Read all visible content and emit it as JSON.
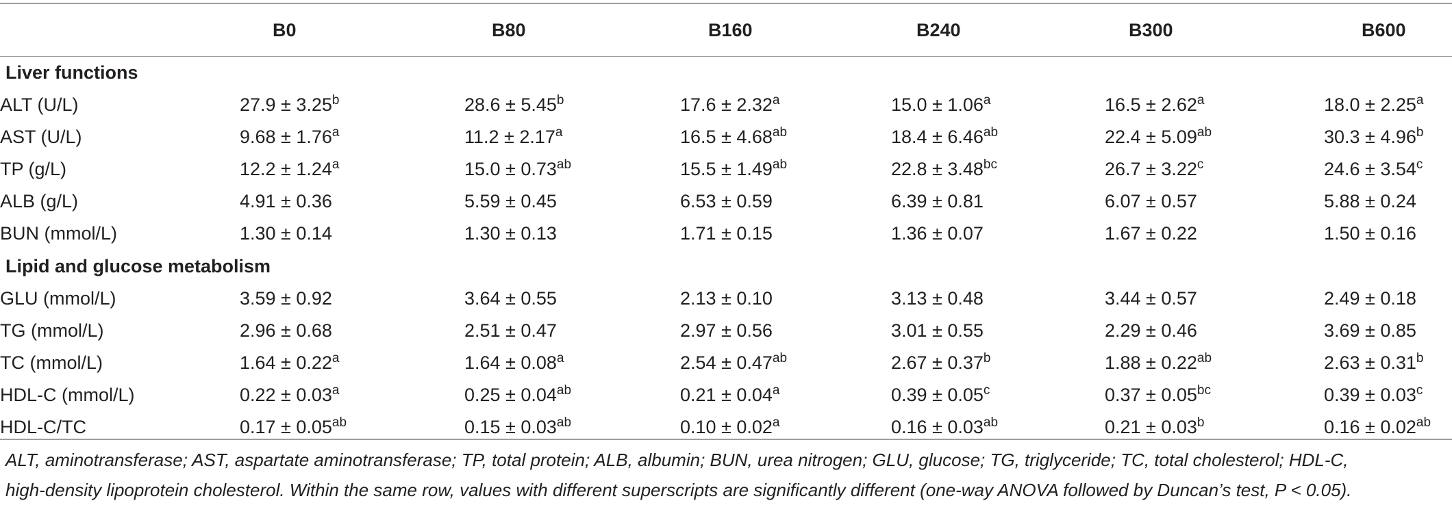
{
  "columns": [
    "",
    "B0",
    "B80",
    "B160",
    "B240",
    "B300",
    "B600"
  ],
  "sections": [
    {
      "title": "Liver functions",
      "rows": [
        {
          "label": "ALT (U/L)",
          "cells": [
            {
              "v": "27.9 ± 3.25",
              "s": "b"
            },
            {
              "v": "28.6 ± 5.45",
              "s": "b"
            },
            {
              "v": "17.6 ± 2.32",
              "s": "a"
            },
            {
              "v": "15.0 ± 1.06",
              "s": "a"
            },
            {
              "v": "16.5 ± 2.62",
              "s": "a"
            },
            {
              "v": "18.0 ± 2.25",
              "s": "a"
            }
          ]
        },
        {
          "label": "AST (U/L)",
          "cells": [
            {
              "v": "9.68 ± 1.76",
              "s": "a"
            },
            {
              "v": "11.2 ± 2.17",
              "s": "a"
            },
            {
              "v": "16.5 ± 4.68",
              "s": "ab"
            },
            {
              "v": "18.4 ± 6.46",
              "s": "ab"
            },
            {
              "v": "22.4 ± 5.09",
              "s": "ab"
            },
            {
              "v": "30.3 ± 4.96",
              "s": "b"
            }
          ]
        },
        {
          "label": "TP (g/L)",
          "cells": [
            {
              "v": "12.2 ± 1.24",
              "s": "a"
            },
            {
              "v": "15.0 ± 0.73",
              "s": "ab"
            },
            {
              "v": "15.5 ± 1.49",
              "s": "ab"
            },
            {
              "v": "22.8 ± 3.48",
              "s": "bc"
            },
            {
              "v": "26.7 ± 3.22",
              "s": "c"
            },
            {
              "v": "24.6 ± 3.54",
              "s": "c"
            }
          ]
        },
        {
          "label": "ALB (g/L)",
          "cells": [
            {
              "v": "4.91 ± 0.36",
              "s": ""
            },
            {
              "v": "5.59 ± 0.45",
              "s": ""
            },
            {
              "v": "6.53 ± 0.59",
              "s": ""
            },
            {
              "v": "6.39 ± 0.81",
              "s": ""
            },
            {
              "v": "6.07 ± 0.57",
              "s": ""
            },
            {
              "v": "5.88 ± 0.24",
              "s": ""
            }
          ]
        },
        {
          "label": "BUN (mmol/L)",
          "cells": [
            {
              "v": "1.30 ± 0.14",
              "s": ""
            },
            {
              "v": "1.30 ± 0.13",
              "s": ""
            },
            {
              "v": "1.71 ± 0.15",
              "s": ""
            },
            {
              "v": "1.36 ± 0.07",
              "s": ""
            },
            {
              "v": "1.67 ± 0.22",
              "s": ""
            },
            {
              "v": "1.50 ± 0.16",
              "s": ""
            }
          ]
        }
      ]
    },
    {
      "title": "Lipid and glucose metabolism",
      "rows": [
        {
          "label": "GLU (mmol/L)",
          "cells": [
            {
              "v": "3.59 ± 0.92",
              "s": ""
            },
            {
              "v": "3.64 ± 0.55",
              "s": ""
            },
            {
              "v": "2.13 ± 0.10",
              "s": ""
            },
            {
              "v": "3.13 ± 0.48",
              "s": ""
            },
            {
              "v": "3.44 ± 0.57",
              "s": ""
            },
            {
              "v": "2.49 ± 0.18",
              "s": ""
            }
          ]
        },
        {
          "label": "TG (mmol/L)",
          "cells": [
            {
              "v": "2.96 ± 0.68",
              "s": ""
            },
            {
              "v": "2.51 ± 0.47",
              "s": ""
            },
            {
              "v": "2.97 ± 0.56",
              "s": ""
            },
            {
              "v": "3.01 ± 0.55",
              "s": ""
            },
            {
              "v": "2.29 ± 0.46",
              "s": ""
            },
            {
              "v": "3.69 ± 0.85",
              "s": ""
            }
          ]
        },
        {
          "label": "TC (mmol/L)",
          "cells": [
            {
              "v": "1.64 ± 0.22",
              "s": "a"
            },
            {
              "v": "1.64 ± 0.08",
              "s": "a"
            },
            {
              "v": "2.54 ± 0.47",
              "s": "ab"
            },
            {
              "v": "2.67 ± 0.37",
              "s": "b"
            },
            {
              "v": "1.88 ± 0.22",
              "s": "ab"
            },
            {
              "v": "2.63 ± 0.31",
              "s": "b"
            }
          ]
        },
        {
          "label": "HDL-C (mmol/L)",
          "cells": [
            {
              "v": "0.22 ± 0.03",
              "s": "a"
            },
            {
              "v": "0.25 ± 0.04",
              "s": "ab"
            },
            {
              "v": "0.21 ± 0.04",
              "s": "a"
            },
            {
              "v": "0.39 ± 0.05",
              "s": "c"
            },
            {
              "v": "0.37 ± 0.05",
              "s": "bc"
            },
            {
              "v": "0.39 ± 0.03",
              "s": "c"
            }
          ]
        },
        {
          "label": "HDL-C/TC",
          "cells": [
            {
              "v": "0.17 ± 0.05",
              "s": "ab"
            },
            {
              "v": "0.15 ± 0.03",
              "s": "ab"
            },
            {
              "v": "0.10 ± 0.02",
              "s": "a"
            },
            {
              "v": "0.16 ± 0.03",
              "s": "ab"
            },
            {
              "v": "0.21 ± 0.03",
              "s": "b"
            },
            {
              "v": "0.16 ± 0.02",
              "s": "ab"
            }
          ]
        }
      ]
    }
  ],
  "footnote": {
    "line1": "ALT, aminotransferase; AST, aspartate aminotransferase; TP, total protein; ALB, albumin; BUN, urea nitrogen; GLU, glucose; TG, triglyceride; TC, total cholesterol; HDL-C,",
    "line2": "high-density lipoprotein cholesterol. Within the same row, values with different superscripts are significantly different (one-way ANOVA followed by Duncan’s test, P < 0.05)."
  }
}
